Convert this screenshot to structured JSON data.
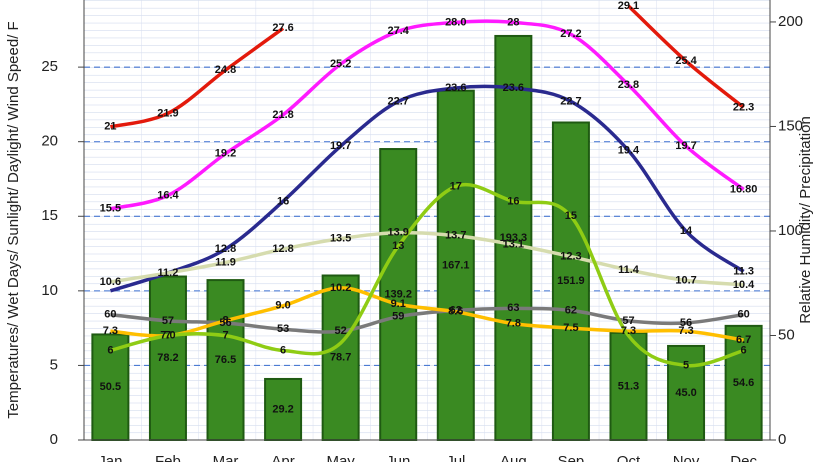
{
  "chart_data": {
    "type": "combo",
    "categories": [
      "Jan",
      "Feb",
      "Mar",
      "Apr",
      "May",
      "Jun",
      "Jul",
      "Aug",
      "Sep",
      "Oct",
      "Nov",
      "Dec"
    ],
    "ylabel": "Temperatures/ Wet Days/ Sunlight/ Daylight/ Wind Speed/ F",
    "y2label": "Relative Humidity/ Precipitation",
    "ylim": [
      0,
      29.5
    ],
    "yticks": [
      0,
      5,
      10,
      15,
      20,
      25
    ],
    "y2lim": [
      0,
      210.5
    ],
    "y2ticks": [
      0,
      50,
      100,
      150,
      200
    ],
    "grid": true,
    "series": [
      {
        "type": "bar",
        "axis": "y2",
        "color": "#3a8a22",
        "values": [
          50.5,
          78.2,
          76.5,
          29.2,
          78.7,
          139.2,
          167.1,
          193.3,
          151.9,
          51.3,
          45.0,
          54.6
        ],
        "value_labels": [
          "50.5",
          "78.2",
          "76.5",
          "29.2",
          "78.7",
          "139.2",
          "167.1",
          "193.3",
          "151.9",
          "51.3",
          "45.0",
          "54.6"
        ]
      },
      {
        "type": "line",
        "color": "#e31a0c",
        "values": [
          21,
          21.9,
          24.8,
          27.6,
          null,
          null,
          null,
          null,
          null,
          29.1,
          25.4,
          22.3
        ],
        "value_labels": [
          "21",
          "21.9",
          "24.8",
          "27.6",
          null,
          null,
          null,
          null,
          null,
          "29.1",
          "25.4",
          "22.3"
        ]
      },
      {
        "type": "line",
        "color": "#ff1aff",
        "values": [
          15.5,
          16.4,
          19.2,
          21.8,
          25.2,
          27.4,
          28.0,
          28,
          27.2,
          23.8,
          19.7,
          16.8
        ],
        "value_labels": [
          "15.5",
          "16.4",
          "19.2",
          "21.8",
          "25.2",
          "27.4",
          "28.0",
          "28",
          "27.2",
          "23.8",
          "19.7",
          "16.80"
        ]
      },
      {
        "type": "line",
        "color": "#2a2a8f",
        "values": [
          10,
          11.2,
          12.8,
          16,
          19.7,
          22.7,
          23.6,
          23.6,
          22.7,
          19.4,
          14,
          11.3
        ],
        "value_labels": [
          null,
          null,
          "12.8",
          "16",
          "19.7",
          "22.7",
          "23.6",
          "23.6",
          "22.7",
          "19.4",
          "14",
          "11.3"
        ]
      },
      {
        "type": "line",
        "color": "#d6dcae",
        "values": [
          10.6,
          11.2,
          11.9,
          12.8,
          13.5,
          13.9,
          13.7,
          13.1,
          12.3,
          11.4,
          10.7,
          10.4
        ],
        "value_labels": [
          "10.6",
          "11.2",
          "11.9",
          "12.8",
          "13.5",
          "13.9",
          "13.7",
          "13.1",
          "12.3",
          "11.4",
          "10.7",
          "10.4"
        ]
      },
      {
        "type": "line",
        "axis": "y2",
        "color": "#7a7a7a",
        "values": [
          60,
          57,
          56,
          53,
          52,
          59,
          62,
          63,
          62,
          57,
          56,
          60
        ],
        "value_labels": [
          "60",
          "57",
          "56",
          "53",
          "52",
          "59",
          "62",
          "63",
          "62",
          "57",
          "56",
          "60"
        ]
      },
      {
        "type": "line",
        "color": "#ffbf00",
        "values": [
          7.3,
          7.0,
          8,
          9.0,
          10.2,
          9.1,
          8.6,
          7.8,
          7.5,
          7.3,
          7.3,
          6.7
        ],
        "value_labels": [
          "7.3",
          "7.0",
          "8",
          "9.0",
          "10.2",
          "9.1",
          "8.6",
          "7.8",
          "7.5",
          "7.3",
          "7.3",
          "6.7"
        ]
      },
      {
        "type": "line",
        "color": "#8fcc14",
        "values": [
          6,
          7,
          7,
          6,
          6.5,
          13,
          17,
          16,
          15,
          7,
          5,
          6
        ],
        "value_labels": [
          "6",
          "7",
          "7",
          "6",
          null,
          "13",
          "17",
          "16",
          "15",
          null,
          "5",
          "6"
        ]
      }
    ]
  }
}
